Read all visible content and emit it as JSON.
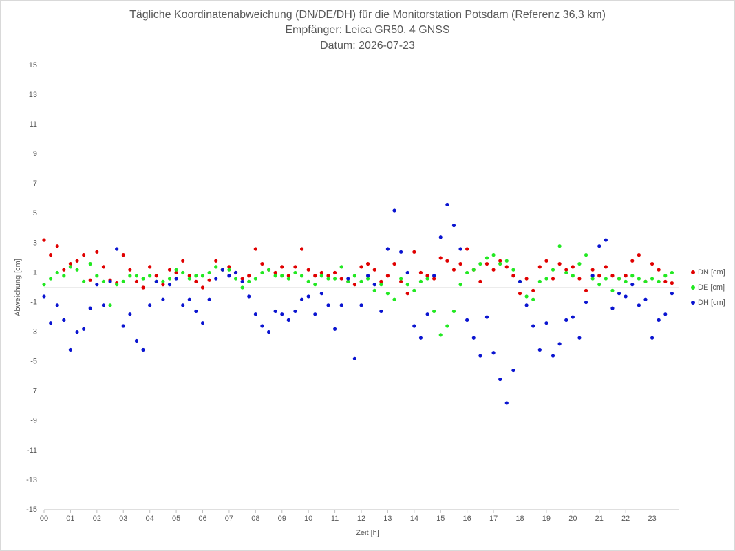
{
  "chart_data": {
    "type": "scatter",
    "title": "Tägliche Koordinatenabweichung (DN/DE/DH) für die Monitorstation Potsdam (Referenz 36,3 km)",
    "subtitle": [
      "Empfänger: Leica GR50, 4 GNSS",
      "Datum: 2026-07-23"
    ],
    "x_label": "Zeit [h]",
    "y_label": "Abweichung [cm]",
    "xlim": [
      0,
      24
    ],
    "ylim": [
      -15,
      15
    ],
    "xticks": [
      {
        "value": 0,
        "label": "00"
      },
      {
        "value": 1,
        "label": "01"
      },
      {
        "value": 2,
        "label": "02"
      },
      {
        "value": 3,
        "label": "03"
      },
      {
        "value": 4,
        "label": "04"
      },
      {
        "value": 5,
        "label": "05"
      },
      {
        "value": 6,
        "label": "06"
      },
      {
        "value": 7,
        "label": "07"
      },
      {
        "value": 8,
        "label": "08"
      },
      {
        "value": 9,
        "label": "09"
      },
      {
        "value": 10,
        "label": "10"
      },
      {
        "value": 11,
        "label": "11"
      },
      {
        "value": 12,
        "label": "12"
      },
      {
        "value": 13,
        "label": "13"
      },
      {
        "value": 14,
        "label": "14"
      },
      {
        "value": 15,
        "label": "15"
      },
      {
        "value": 16,
        "label": "16"
      },
      {
        "value": 17,
        "label": "17"
      },
      {
        "value": 18,
        "label": "18"
      },
      {
        "value": 19,
        "label": "19"
      },
      {
        "value": 20,
        "label": "20"
      },
      {
        "value": 21,
        "label": "21"
      },
      {
        "value": 22,
        "label": "22"
      },
      {
        "value": 23,
        "label": "23"
      }
    ],
    "yticks": [
      -15,
      -13,
      -11,
      -9,
      -7,
      -5,
      -3,
      -1,
      1,
      3,
      5,
      7,
      9,
      11,
      13,
      15
    ],
    "legend": "right",
    "x": [
      0,
      0.25,
      0.5,
      0.75,
      1,
      1.25,
      1.5,
      1.75,
      2,
      2.25,
      2.5,
      2.75,
      3,
      3.25,
      3.5,
      3.75,
      4,
      4.25,
      4.5,
      4.75,
      5,
      5.25,
      5.5,
      5.75,
      6,
      6.25,
      6.5,
      6.75,
      7,
      7.25,
      7.5,
      7.75,
      8,
      8.25,
      8.5,
      8.75,
      9,
      9.25,
      9.5,
      9.75,
      10,
      10.25,
      10.5,
      10.75,
      11,
      11.25,
      11.5,
      11.75,
      12,
      12.25,
      12.5,
      12.75,
      13,
      13.25,
      13.5,
      13.75,
      14,
      14.25,
      14.5,
      14.75,
      15,
      15.25,
      15.5,
      15.75,
      16,
      16.25,
      16.5,
      16.75,
      17,
      17.25,
      17.5,
      17.75,
      18,
      18.25,
      18.5,
      18.75,
      19,
      19.25,
      19.5,
      19.75,
      20,
      20.25,
      20.5,
      20.75,
      21,
      21.25,
      21.5,
      21.75,
      22,
      22.25,
      22.5,
      22.75,
      23,
      23.25,
      23.5,
      23.75
    ],
    "series": [
      {
        "name": "DN [cm]",
        "color": "#e00000",
        "values": [
          3.2,
          2.2,
          2.8,
          1.2,
          1.6,
          1.8,
          2.2,
          0.5,
          2.4,
          1.4,
          0.5,
          0.3,
          2.2,
          1.2,
          0.4,
          0.0,
          1.4,
          0.8,
          0.2,
          1.2,
          1.0,
          1.8,
          0.8,
          0.4,
          0.0,
          0.5,
          1.8,
          1.2,
          1.4,
          1.0,
          0.6,
          0.8,
          2.6,
          1.6,
          1.2,
          1.0,
          1.4,
          0.8,
          1.4,
          2.6,
          1.2,
          0.8,
          1.0,
          0.8,
          1.0,
          0.6,
          0.4,
          0.2,
          1.4,
          1.6,
          1.2,
          0.4,
          0.8,
          1.6,
          0.4,
          -0.4,
          2.4,
          1.0,
          0.8,
          0.6,
          2.0,
          1.8,
          1.2,
          1.6,
          2.6,
          1.2,
          0.4,
          1.6,
          1.2,
          1.8,
          1.4,
          0.8,
          -0.4,
          0.6,
          -0.2,
          1.4,
          1.8,
          0.6,
          1.6,
          1.2,
          1.4,
          0.6,
          -0.2,
          1.2,
          0.8,
          1.4,
          0.8,
          0.6,
          0.8,
          1.8,
          2.2,
          0.4,
          1.6,
          1.2,
          0.4,
          0.3
        ]
      },
      {
        "name": "DE [cm]",
        "color": "#22e822",
        "values": [
          0.2,
          0.6,
          1.0,
          0.8,
          1.4,
          1.2,
          0.4,
          1.6,
          0.8,
          0.4,
          -1.2,
          0.2,
          0.4,
          0.8,
          0.8,
          0.6,
          0.8,
          0.4,
          0.4,
          0.6,
          1.2,
          1.0,
          0.6,
          0.8,
          0.8,
          1.0,
          1.4,
          1.2,
          1.2,
          0.6,
          0.0,
          0.4,
          0.6,
          1.0,
          1.2,
          0.8,
          0.8,
          0.6,
          1.0,
          0.8,
          0.4,
          0.2,
          0.8,
          0.6,
          0.6,
          1.4,
          0.4,
          0.8,
          0.4,
          0.6,
          -0.2,
          0.2,
          -0.4,
          -0.8,
          0.6,
          0.2,
          -0.2,
          0.4,
          0.6,
          -1.6,
          -3.2,
          -2.6,
          -1.6,
          0.2,
          1.0,
          1.2,
          1.6,
          2.0,
          2.2,
          1.6,
          1.8,
          1.2,
          0.4,
          -0.6,
          -0.8,
          0.4,
          0.6,
          1.2,
          2.8,
          1.0,
          0.8,
          1.6,
          2.2,
          0.6,
          0.2,
          0.6,
          -0.2,
          0.6,
          0.4,
          0.8,
          0.6,
          0.4,
          0.6,
          0.4,
          0.8,
          1.0
        ]
      },
      {
        "name": "DH [cm]",
        "color": "#0a14d0",
        "values": [
          -0.6,
          -2.4,
          -1.2,
          -2.2,
          -4.2,
          -3.0,
          -2.8,
          -1.4,
          0.2,
          -1.2,
          0.4,
          2.6,
          -2.6,
          -1.8,
          -3.6,
          -4.2,
          -1.2,
          0.4,
          -0.8,
          0.2,
          0.6,
          -1.2,
          -0.8,
          -1.6,
          -2.4,
          -0.8,
          0.6,
          1.2,
          0.8,
          1.0,
          0.4,
          -0.6,
          -1.8,
          -2.6,
          -3.0,
          -1.6,
          -1.8,
          -2.2,
          -1.6,
          -0.8,
          -0.6,
          -1.8,
          -0.4,
          -1.2,
          -2.8,
          -1.2,
          0.6,
          -4.8,
          -1.2,
          0.8,
          0.2,
          -1.6,
          2.6,
          5.2,
          2.4,
          1.0,
          -2.6,
          -3.4,
          -1.8,
          0.8,
          3.4,
          5.6,
          4.2,
          2.6,
          -2.2,
          -3.4,
          -4.6,
          -2.0,
          -4.4,
          -6.2,
          -7.8,
          -5.6,
          0.4,
          -1.2,
          -2.6,
          -4.2,
          -2.4,
          -4.6,
          -3.8,
          -2.2,
          -2.0,
          -3.4,
          -1.0,
          0.8,
          2.8,
          3.2,
          -1.4,
          -0.4,
          -0.6,
          0.2,
          -1.2,
          -0.8,
          -3.4,
          -2.2,
          -1.8,
          -0.4
        ]
      }
    ]
  }
}
